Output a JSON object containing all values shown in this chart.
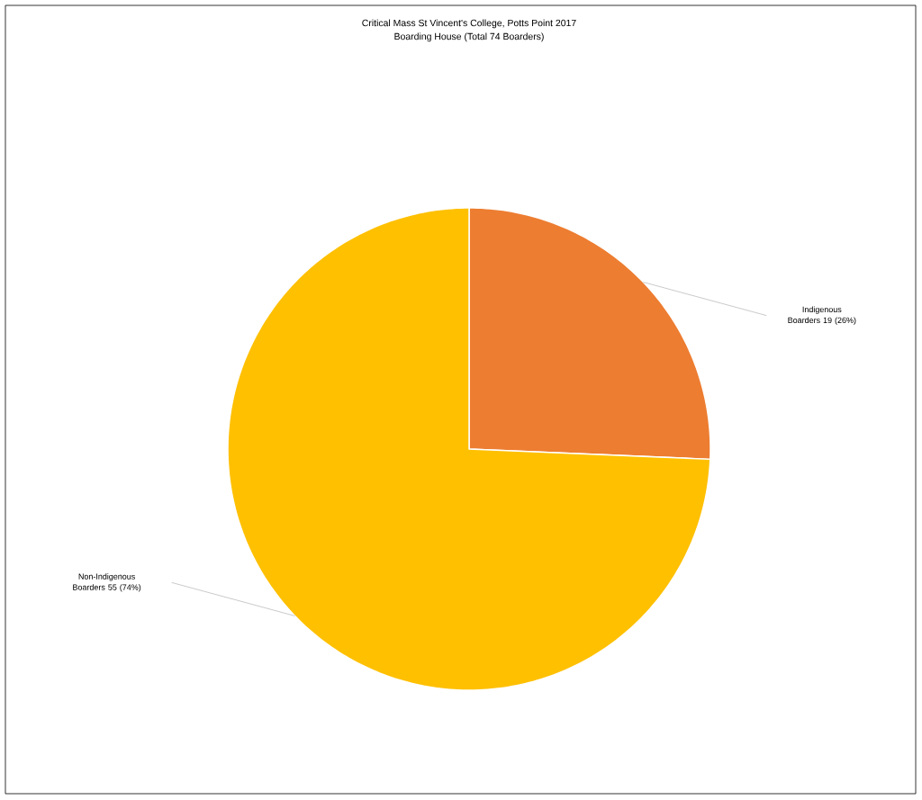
{
  "chart_data": {
    "type": "pie",
    "title": "Critical Mass  St Vincent's College, Potts Point 2017",
    "subtitle": "Boarding House (Total 74 Boarders)",
    "categories": [
      "Indigenous Boarders",
      "Non-Indigenous Boarders"
    ],
    "values": [
      19,
      55
    ],
    "colors": [
      "#ed7d31",
      "#ffc000"
    ],
    "value_labels": [
      "19 (26%)",
      "55 (74%)"
    ]
  }
}
